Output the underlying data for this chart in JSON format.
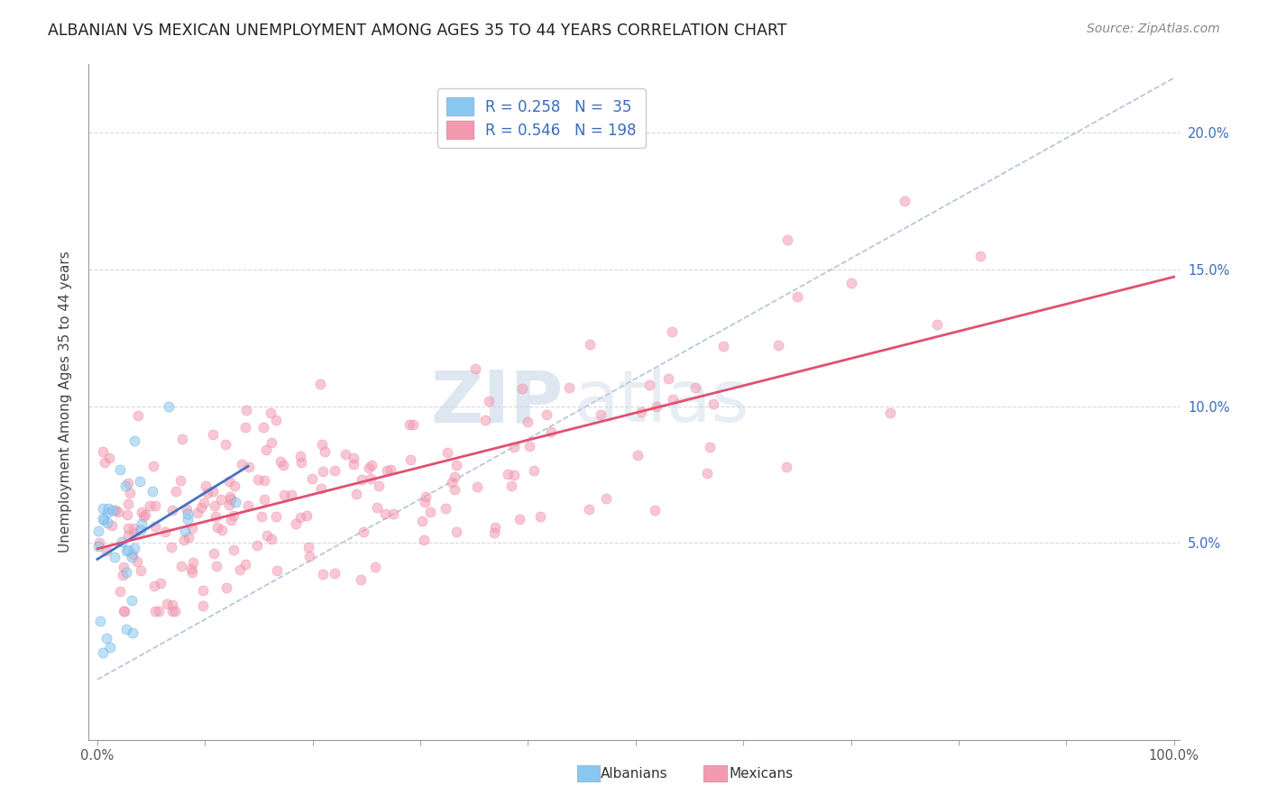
{
  "title": "ALBANIAN VS MEXICAN UNEMPLOYMENT AMONG AGES 35 TO 44 YEARS CORRELATION CHART",
  "source": "Source: ZipAtlas.com",
  "ylabel": "Unemployment Among Ages 35 to 44 years",
  "yticks_labels": [
    "5.0%",
    "10.0%",
    "15.0%",
    "20.0%"
  ],
  "ytick_vals": [
    0.05,
    0.1,
    0.15,
    0.2
  ],
  "albanian_color": "#88c8f0",
  "mexican_color": "#f49ab0",
  "albanian_line_color": "#4472c4",
  "mexican_line_color": "#e05070",
  "diagonal_color": "#a8bcd8",
  "watermark_zip": "ZIP",
  "watermark_atlas": "atlas",
  "background_color": "#ffffff",
  "grid_color": "#d8d8d8",
  "title_fontsize": 12.5,
  "source_fontsize": 10,
  "label_fontsize": 11,
  "tick_fontsize": 10.5,
  "legend_fontsize": 12,
  "marker_size": 8,
  "marker_alpha": 0.55,
  "marker_edge_alpha": 0.8,
  "xlim": [
    -0.008,
    1.005
  ],
  "ylim": [
    -0.022,
    0.225
  ]
}
